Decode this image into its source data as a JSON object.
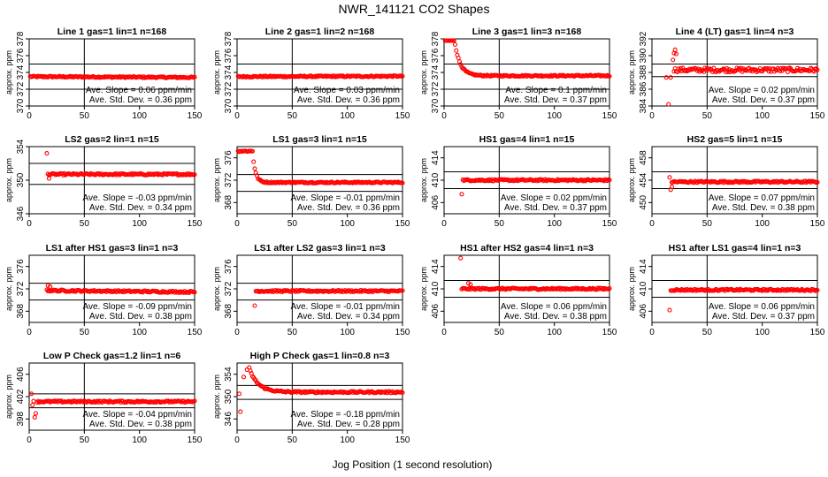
{
  "figure": {
    "title": "NWR_141121   CO2 Shapes",
    "xlabel": "Jog Position (1 second resolution)"
  },
  "chart_data": [
    {
      "type": "scatter",
      "title": "Line 1 gas=1 lin=1 n=168",
      "ylabel": "approx. ppm",
      "xlim": [
        0,
        150
      ],
      "xticks": [
        0,
        50,
        100,
        150
      ],
      "ylim": [
        370,
        378
      ],
      "yticks": [
        370,
        372,
        374,
        376,
        378
      ],
      "hlines": [
        372,
        375
      ],
      "vline": 50,
      "slope": "Ave. Slope =  0.06  ppm/min",
      "sd": "Ave. Std. Dev. =  0.36  ppm",
      "shape": {
        "level": 373.5,
        "start": 1,
        "initial": [],
        "tail_start": null,
        "tail_level": null,
        "drift": -0.1,
        "noise": 0.08
      }
    },
    {
      "type": "scatter",
      "title": "Line 2 gas=1 lin=2 n=168",
      "ylabel": "approx. ppm",
      "xlim": [
        0,
        150
      ],
      "xticks": [
        0,
        50,
        100,
        150
      ],
      "ylim": [
        370,
        378
      ],
      "yticks": [
        370,
        372,
        374,
        376,
        378
      ],
      "hlines": [
        372,
        375
      ],
      "vline": 50,
      "slope": "Ave. Slope =  0.03  ppm/min",
      "sd": "Ave. Std. Dev. =  0.36  ppm",
      "shape": {
        "level": 373.5,
        "start": 1,
        "initial": [],
        "tail_start": null,
        "tail_level": null,
        "drift": 0.05,
        "noise": 0.08
      }
    },
    {
      "type": "scatter",
      "title": "Line 3 gas=1 lin=3 n=168",
      "ylabel": "approx. ppm",
      "xlim": [
        0,
        150
      ],
      "xticks": [
        0,
        50,
        100,
        150
      ],
      "ylim": [
        370,
        378
      ],
      "yticks": [
        370,
        372,
        374,
        376,
        378
      ],
      "hlines": [
        372,
        375
      ],
      "vline": 50,
      "slope": "Ave. Slope =  0.1  ppm/min",
      "sd": "Ave. Std. Dev. =  0.37  ppm",
      "shape": {
        "level": 373.5,
        "start": 1,
        "initial": [],
        "tail_start": null,
        "tail_level": null,
        "drift": 0,
        "noise": 0.08,
        "decay": {
          "from": 378.2,
          "to": 373.6,
          "flat_until": 9,
          "tau": 5
        }
      }
    },
    {
      "type": "scatter",
      "title": "Line 4 (LT) gas=1 lin=4 n=3",
      "ylabel": "approx. ppm",
      "xlim": [
        0,
        150
      ],
      "xticks": [
        0,
        50,
        100,
        150
      ],
      "ylim": [
        384,
        392
      ],
      "yticks": [
        384,
        386,
        388,
        390,
        392
      ],
      "hlines": [
        387.5,
        389
      ],
      "vline": 50,
      "slope": "Ave. Slope =  0.02  ppm/min",
      "sd": "Ave. Std. Dev. =  0.37  ppm",
      "shape": {
        "level": 388.3,
        "start": 20,
        "initial": [
          [
            13,
            387.4
          ],
          [
            17,
            387.4
          ],
          [
            15,
            383.5
          ],
          [
            19,
            389.5
          ],
          [
            20,
            390.3
          ],
          [
            21,
            390.7
          ],
          [
            22,
            390.2
          ]
        ],
        "tail_start": null,
        "tail_level": null,
        "drift": 0,
        "noise": 0.25
      }
    },
    {
      "type": "scatter",
      "title": "LS2 gas=2 lin=1 n=15",
      "ylabel": "approx. ppm",
      "xlim": [
        0,
        150
      ],
      "xticks": [
        0,
        50,
        100,
        150
      ],
      "ylim": [
        346,
        354
      ],
      "yticks": [
        346,
        350,
        354
      ],
      "hlines": [
        349.5,
        352
      ],
      "vline": 50,
      "slope": "Ave. Slope =  -0.03  ppm/min",
      "sd": "Ave. Std. Dev. =  0.34  ppm",
      "shape": {
        "level": 350.7,
        "start": 17,
        "initial": [
          [
            16,
            353.2
          ],
          [
            18,
            350.2
          ]
        ],
        "tail_start": null,
        "tail_level": null,
        "drift": 0,
        "noise": 0.1
      }
    },
    {
      "type": "scatter",
      "title": "LS1 gas=3 lin=1 n=15",
      "ylabel": "approx. ppm",
      "xlim": [
        0,
        150
      ],
      "xticks": [
        0,
        50,
        100,
        150
      ],
      "ylim": [
        366,
        378
      ],
      "yticks": [
        368,
        372,
        376
      ],
      "hlines": [
        370,
        373
      ],
      "vline": 50,
      "slope": "Ave. Slope =  -0.01  ppm/min",
      "sd": "Ave. Std. Dev. =  0.36  ppm",
      "shape": {
        "level": 371.6,
        "start": 1,
        "initial": [],
        "tail_start": null,
        "tail_level": null,
        "drift": 0,
        "noise": 0.12,
        "decay": {
          "from": 377.2,
          "to": 371.6,
          "flat_until": 14,
          "tau": 2.5
        }
      }
    },
    {
      "type": "scatter",
      "title": "HS1 gas=4 lin=1 n=15",
      "ylabel": "approx. ppm",
      "xlim": [
        0,
        150
      ],
      "xticks": [
        0,
        50,
        100,
        150
      ],
      "ylim": [
        404,
        416
      ],
      "yticks": [
        406,
        410,
        414
      ],
      "hlines": [
        408.5,
        411.5
      ],
      "vline": 50,
      "slope": "Ave. Slope =  0.02  ppm/min",
      "sd": "Ave. Std. Dev. =  0.37  ppm",
      "shape": {
        "level": 410,
        "start": 17,
        "initial": [
          [
            16,
            407.5
          ]
        ],
        "tail_start": null,
        "tail_level": null,
        "drift": 0,
        "noise": 0.15
      }
    },
    {
      "type": "scatter",
      "title": "HS2 gas=5 lin=1 n=15",
      "ylabel": "approx. ppm",
      "xlim": [
        0,
        150
      ],
      "xticks": [
        0,
        50,
        100,
        150
      ],
      "ylim": [
        448,
        460
      ],
      "yticks": [
        450,
        454,
        458
      ],
      "hlines": [
        452.5,
        455.5
      ],
      "vline": 50,
      "slope": "Ave. Slope =  0.07  ppm/min",
      "sd": "Ave. Std. Dev. =  0.38  ppm",
      "shape": {
        "level": 453.7,
        "start": 18,
        "initial": [
          [
            16,
            454.5
          ],
          [
            17,
            452.3
          ],
          [
            18,
            452.8
          ]
        ],
        "tail_start": null,
        "tail_level": null,
        "drift": 0,
        "noise": 0.15
      }
    },
    {
      "type": "scatter",
      "title": "LS1 after HS1 gas=3 lin=1 n=3",
      "ylabel": "approx. ppm",
      "xlim": [
        0,
        150
      ],
      "xticks": [
        0,
        50,
        100,
        150
      ],
      "ylim": [
        366,
        378
      ],
      "yticks": [
        368,
        372,
        376
      ],
      "hlines": [
        370,
        373
      ],
      "vline": 50,
      "slope": "Ave. Slope =  -0.09  ppm/min",
      "sd": "Ave. Std. Dev. =  0.38  ppm",
      "shape": {
        "level": 371.7,
        "start": 16,
        "initial": [
          [
            17,
            372.6
          ],
          [
            19,
            372.4
          ]
        ],
        "tail_start": null,
        "tail_level": null,
        "drift": -0.3,
        "noise": 0.15
      }
    },
    {
      "type": "scatter",
      "title": "LS1 after LS2 gas=3 lin=1 n=3",
      "ylabel": "approx. ppm",
      "xlim": [
        0,
        150
      ],
      "xticks": [
        0,
        50,
        100,
        150
      ],
      "ylim": [
        366,
        378
      ],
      "yticks": [
        368,
        372,
        376
      ],
      "hlines": [
        370,
        373
      ],
      "vline": 50,
      "slope": "Ave. Slope =  -0.01  ppm/min",
      "sd": "Ave. Std. Dev. =  0.34  ppm",
      "shape": {
        "level": 371.6,
        "start": 17,
        "initial": [
          [
            16,
            369
          ]
        ],
        "tail_start": null,
        "tail_level": null,
        "drift": 0,
        "noise": 0.15
      }
    },
    {
      "type": "scatter",
      "title": "HS1 after HS2 gas=4 lin=1 n=3",
      "ylabel": "approx. ppm",
      "xlim": [
        0,
        150
      ],
      "xticks": [
        0,
        50,
        100,
        150
      ],
      "ylim": [
        404,
        416
      ],
      "yticks": [
        406,
        410,
        414
      ],
      "hlines": [
        408.5,
        411.5
      ],
      "vline": 50,
      "slope": "Ave. Slope =  0.06  ppm/min",
      "sd": "Ave. Std. Dev. =  0.38  ppm",
      "shape": {
        "level": 410,
        "start": 16,
        "initial": [
          [
            15,
            415.5
          ],
          [
            22,
            411
          ],
          [
            24,
            410.8
          ]
        ],
        "tail_start": null,
        "tail_level": null,
        "drift": 0,
        "noise": 0.15
      }
    },
    {
      "type": "scatter",
      "title": "HS1 after LS1 gas=4 lin=1 n=3",
      "ylabel": "approx. ppm",
      "xlim": [
        0,
        150
      ],
      "xticks": [
        0,
        50,
        100,
        150
      ],
      "ylim": [
        404,
        416
      ],
      "yticks": [
        406,
        410,
        414
      ],
      "hlines": [
        408.5,
        411.5
      ],
      "vline": 50,
      "slope": "Ave. Slope =  0.06  ppm/min",
      "sd": "Ave. Std. Dev. =  0.37  ppm",
      "shape": {
        "level": 409.8,
        "start": 17,
        "initial": [
          [
            16,
            406.2
          ]
        ],
        "tail_start": null,
        "tail_level": null,
        "drift": 0,
        "noise": 0.15
      }
    },
    {
      "type": "scatter",
      "title": "Low P Check gas=1.2 lin=1 n=6",
      "ylabel": "approx. ppm",
      "xlim": [
        0,
        150
      ],
      "xticks": [
        0,
        50,
        100,
        150
      ],
      "ylim": [
        396,
        408
      ],
      "yticks": [
        398,
        402,
        406
      ],
      "hlines": [
        400,
        402.5
      ],
      "vline": 50,
      "slope": "Ave. Slope =  -0.04  ppm/min",
      "sd": "Ave. Std. Dev. =  0.38  ppm",
      "shape": {
        "level": 401.1,
        "start": 7,
        "initial": [
          [
            2,
            402.5
          ],
          [
            3,
            400.5
          ],
          [
            4,
            401.2
          ],
          [
            5,
            398.3
          ],
          [
            6,
            399
          ]
        ],
        "tail_start": null,
        "tail_level": null,
        "drift": 0,
        "noise": 0.15
      }
    },
    {
      "type": "scatter",
      "title": "High P Check gas=1 lin=0.8 n=3",
      "ylabel": "approx. ppm",
      "xlim": [
        0,
        150
      ],
      "xticks": [
        0,
        50,
        100,
        150
      ],
      "ylim": [
        344,
        356
      ],
      "yticks": [
        346,
        350,
        354
      ],
      "hlines": [
        349.5,
        352
      ],
      "vline": 50,
      "slope": "Ave. Slope =  -0.18  ppm/min",
      "sd": "Ave. Std. Dev. =  0.28  ppm",
      "shape": {
        "level": 350.5,
        "start": 12,
        "initial": [
          [
            2,
            350.5
          ],
          [
            3,
            347.3
          ],
          [
            6,
            353.5
          ],
          [
            9,
            354.8
          ],
          [
            11,
            355.2
          ]
        ],
        "tail_start": null,
        "tail_level": null,
        "drift": 0,
        "noise": 0.15,
        "decay": {
          "from": 355,
          "to": 350.8,
          "flat_until": 11,
          "tau": 8
        }
      }
    }
  ]
}
